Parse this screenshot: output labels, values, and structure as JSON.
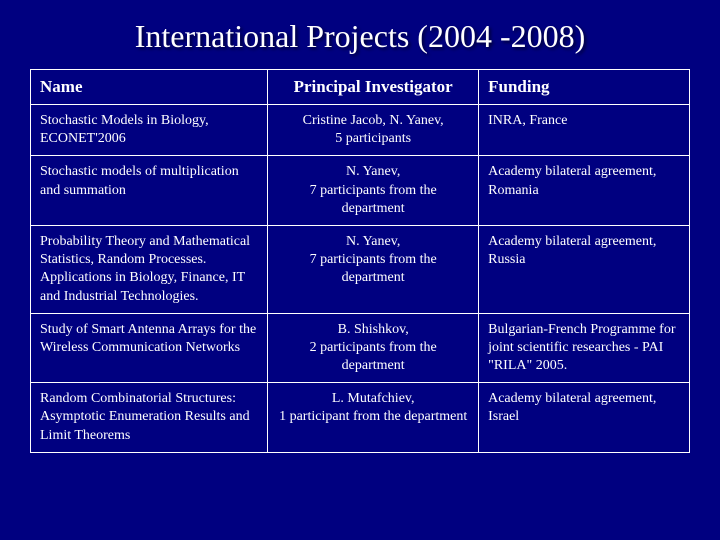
{
  "title": "International Projects (2004 -2008)",
  "table": {
    "columns": [
      "Name",
      "Principal Investigator",
      "Funding"
    ],
    "rows": [
      {
        "name": "Stochastic Models in Biology, ECONET'2006",
        "pi": "Cristine Jacob, N. Yanev,\n5 participants",
        "funding": "INRA, France"
      },
      {
        "name": "Stochastic models of multiplication and summation",
        "pi": "N. Yanev,\n7 participants from the department",
        "funding": "Academy bilateral agreement, Romania"
      },
      {
        "name": "Probability Theory and Mathematical Statistics, Random Processes. Applications in Biology, Finance, IT and Industrial Technologies.",
        "pi": "N. Yanev,\n7 participants from the department",
        "funding": "Academy bilateral agreement, Russia"
      },
      {
        "name": "Study of Smart Antenna Arrays for the Wireless Communication Networks",
        "pi": "B. Shishkov,\n2 participants from the department",
        "funding": "Bulgarian-French Programme for joint scientific researches - PAI \"RILA\" 2005."
      },
      {
        "name": "Random Combinatorial Structures: Asymptotic Enumeration Results and Limit Theorems",
        "pi": "L. Mutafchiev,\n1 participant from the department",
        "funding": "Academy bilateral agreement, Israel"
      }
    ]
  },
  "style": {
    "background_color": "#000080",
    "text_color": "#ffffff",
    "border_color": "#ffffff",
    "title_fontsize": 32,
    "header_fontsize": 17,
    "cell_fontsize": 14,
    "column_widths_pct": [
      36,
      32,
      32
    ]
  }
}
